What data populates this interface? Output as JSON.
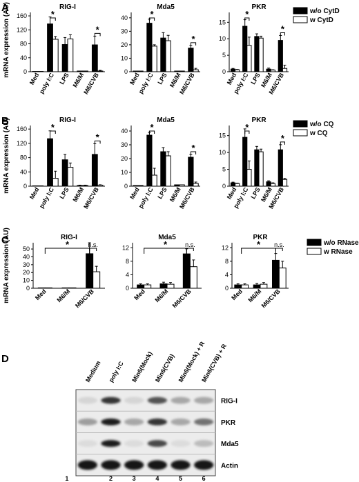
{
  "panels": [
    {
      "id": "A",
      "label": "A",
      "ylabel": "mRNA expression (AU)",
      "legend": [
        "w/o CytD",
        "w CytD"
      ],
      "charts": [
        {
          "title": "RIG-I",
          "categories": [
            "Med",
            "poly I:C",
            "LPS",
            "M6/M",
            "M6/CVB"
          ],
          "ylim": [
            0,
            170
          ],
          "yticks": [
            0,
            40,
            80,
            120,
            160
          ],
          "series": [
            {
              "name": "w/o CytD",
              "values": [
                1,
                137,
                78,
                2,
                77
              ],
              "errors": [
                0,
                20,
                20,
                0,
                25
              ]
            },
            {
              "name": "w CytD",
              "values": [
                1,
                93,
                94,
                2,
                2
              ],
              "errors": [
                0,
                8,
                12,
                0,
                2
              ]
            }
          ],
          "sig": [
            {
              "cat": 1,
              "label": "*"
            },
            {
              "cat": 4,
              "label": "*"
            }
          ]
        },
        {
          "title": "Mda5",
          "categories": [
            "Med",
            "poly I:C",
            "LPS",
            "M6/M",
            "M6/CVB"
          ],
          "ylim": [
            0,
            44
          ],
          "yticks": [
            0,
            10,
            20,
            30,
            40
          ],
          "series": [
            {
              "name": "w/o CytD",
              "values": [
                0.5,
                36,
                25,
                0.5,
                17.5
              ],
              "errors": [
                0,
                3,
                4,
                0,
                2
              ]
            },
            {
              "name": "w CytD",
              "values": [
                0.5,
                19,
                23,
                0.5,
                1.5
              ],
              "errors": [
                0,
                1,
                4,
                0,
                1
              ]
            }
          ],
          "sig": [
            {
              "cat": 1,
              "label": "*"
            },
            {
              "cat": 4,
              "label": "*"
            }
          ]
        },
        {
          "title": "PKR",
          "categories": [
            "Med",
            "poly I:C",
            "LPS",
            "M6/M",
            "M6/CVB"
          ],
          "ylim": [
            0,
            18
          ],
          "yticks": [
            0,
            5,
            10,
            15
          ],
          "series": [
            {
              "name": "w/o CytD",
              "values": [
                0.8,
                13.8,
                10.7,
                0.8,
                9.5
              ],
              "errors": [
                0.2,
                2,
                0.8,
                0.3,
                1.5
              ]
            },
            {
              "name": "w CytD",
              "values": [
                0.6,
                8,
                10.2,
                0.5,
                1
              ],
              "errors": [
                0.1,
                2.5,
                0.6,
                0.1,
                1
              ]
            }
          ],
          "sig": [
            {
              "cat": 1,
              "label": "*"
            },
            {
              "cat": 4,
              "label": "*"
            }
          ]
        }
      ]
    },
    {
      "id": "B",
      "label": "B",
      "ylabel": "mRNA expression (AU)",
      "legend": [
        "w/o CQ",
        "w CQ"
      ],
      "charts": [
        {
          "title": "RIG-I",
          "categories": [
            "Med",
            "poly I:C",
            "LPS",
            "M6/M",
            "M6/CVB"
          ],
          "ylim": [
            0,
            170
          ],
          "yticks": [
            0,
            40,
            80,
            120,
            160
          ],
          "series": [
            {
              "name": "w/o CQ",
              "values": [
                1,
                133,
                74,
                2,
                89
              ],
              "errors": [
                0,
                22,
                15,
                1,
                30
              ]
            },
            {
              "name": "w CQ",
              "values": [
                1,
                22,
                53,
                2,
                3
              ],
              "errors": [
                0,
                20,
                12,
                1,
                1
              ]
            }
          ],
          "sig": [
            {
              "cat": 1,
              "label": "*"
            },
            {
              "cat": 4,
              "label": "*"
            }
          ]
        },
        {
          "title": "Mda5",
          "categories": [
            "Med",
            "poly I:C",
            "LPS",
            "M6/M",
            "M6/CVB"
          ],
          "ylim": [
            0,
            44
          ],
          "yticks": [
            0,
            10,
            20,
            30,
            40
          ],
          "series": [
            {
              "name": "w/o CQ",
              "values": [
                0.5,
                37,
                25,
                1,
                21
              ],
              "errors": [
                0,
                2,
                3,
                0,
                2
              ]
            },
            {
              "name": "w CQ",
              "values": [
                0.5,
                8,
                22,
                1,
                2
              ],
              "errors": [
                0,
                5,
                3,
                0,
                1
              ]
            }
          ],
          "sig": [
            {
              "cat": 1,
              "label": "*"
            },
            {
              "cat": 4,
              "label": "*"
            }
          ]
        },
        {
          "title": "PKR",
          "categories": [
            "Med",
            "poly I:C",
            "LPS",
            "M6/M",
            "M6/CVB"
          ],
          "ylim": [
            0,
            18
          ],
          "yticks": [
            0,
            5,
            10,
            15
          ],
          "series": [
            {
              "name": "w/o CQ",
              "values": [
                1,
                14.5,
                10.8,
                1.3,
                10.8
              ],
              "errors": [
                0.2,
                2.5,
                1,
                0.3,
                1.5
              ]
            },
            {
              "name": "w CQ",
              "values": [
                0.8,
                5,
                10.2,
                0.8,
                2
              ],
              "errors": [
                0.1,
                2.5,
                0.8,
                0.2,
                0.3
              ]
            }
          ],
          "sig": [
            {
              "cat": 1,
              "label": "*"
            },
            {
              "cat": 4,
              "label": "*"
            }
          ]
        }
      ]
    },
    {
      "id": "C",
      "label": "C",
      "ylabel": "mRNA expression (AU)",
      "legend": [
        "w/o RNase",
        "w RNase"
      ],
      "charts": [
        {
          "title": "RIG-I",
          "categories": [
            "Med",
            "M6/M",
            "M6/CVB"
          ],
          "ylim": [
            0,
            58
          ],
          "yticks": [
            0,
            10,
            20,
            30,
            40,
            50
          ],
          "series": [
            {
              "name": "w/o RNase",
              "values": [
                0.5,
                0.5,
                44
              ],
              "errors": [
                0,
                0,
                14
              ]
            },
            {
              "name": "w RNase",
              "values": [
                0.5,
                0.5,
                21
              ],
              "errors": [
                0,
                0,
                7
              ]
            }
          ],
          "bracket": {
            "from": 0,
            "to": 2,
            "label": "*"
          },
          "ns": {
            "cat": 2,
            "label": "n.s."
          }
        },
        {
          "title": "Mda5",
          "categories": [
            "Med",
            "M6/M",
            "M6/CVB"
          ],
          "ylim": [
            0,
            13.5
          ],
          "yticks": [
            0,
            4,
            8,
            12
          ],
          "series": [
            {
              "name": "w/o RNase",
              "values": [
                1,
                1.3,
                10.2
              ],
              "errors": [
                0.3,
                0.5,
                1.5
              ]
            },
            {
              "name": "w RNase",
              "values": [
                1,
                1.2,
                6.4
              ],
              "errors": [
                0.3,
                0.5,
                2
              ]
            }
          ],
          "bracket": {
            "from": 0,
            "to": 2,
            "label": "*"
          },
          "ns": {
            "cat": 2,
            "label": "n.s."
          }
        },
        {
          "title": "PKR",
          "categories": [
            "Med",
            "M6/M",
            "M6/CVB"
          ],
          "ylim": [
            0,
            13.5
          ],
          "yticks": [
            0,
            4,
            8,
            12
          ],
          "series": [
            {
              "name": "w/o RNase",
              "values": [
                1,
                1,
                8.3
              ],
              "errors": [
                0.3,
                0.4,
                2
              ]
            },
            {
              "name": "w RNase",
              "values": [
                1,
                1.2,
                6
              ],
              "errors": [
                0.3,
                0.5,
                2
              ]
            }
          ],
          "bracket": {
            "from": 0,
            "to": 2,
            "label": "*"
          },
          "ns": {
            "cat": 2,
            "label": "n.s."
          }
        }
      ]
    }
  ],
  "blot": {
    "label": "D",
    "columns": [
      "Medium",
      "poly I:C",
      "Min6(Mock)",
      "Min6(CVB)",
      "Min6(Mock) + R",
      "Min6(CVB) + R"
    ],
    "rows": [
      {
        "name": "RIG-I",
        "intensity": [
          0.08,
          0.85,
          0.08,
          0.7,
          0.3,
          0.3
        ]
      },
      {
        "name": "PKR",
        "intensity": [
          0.35,
          0.95,
          0.3,
          0.85,
          0.3,
          0.55
        ]
      },
      {
        "name": "Mda5",
        "intensity": [
          0.05,
          0.95,
          0.05,
          0.75,
          0.05,
          0.2
        ]
      },
      {
        "name": "Actin",
        "intensity": [
          1,
          1,
          1,
          1,
          1,
          1
        ]
      }
    ],
    "lanes": [
      "1",
      "2",
      "3",
      "4",
      "5",
      "6"
    ]
  }
}
